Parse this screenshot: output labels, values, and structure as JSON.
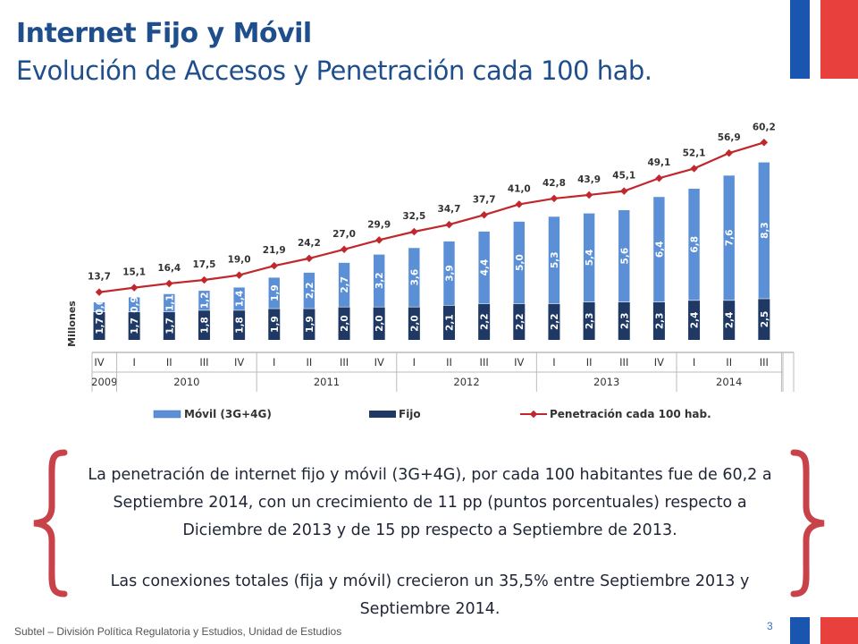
{
  "title": "Internet Fijo y Móvil",
  "subtitle": "Evolución de Accesos y Penetración cada 100 hab.",
  "chart_data": {
    "type": "bar",
    "stacked": true,
    "ylabel": "Millones",
    "categories": [
      "IV",
      "I",
      "II",
      "III",
      "IV",
      "I",
      "II",
      "III",
      "IV",
      "I",
      "II",
      "III",
      "IV",
      "I",
      "II",
      "III",
      "IV",
      "I",
      "II",
      "III"
    ],
    "year_groups": [
      {
        "label": "2009",
        "count": 1
      },
      {
        "label": "2010",
        "count": 4
      },
      {
        "label": "2011",
        "count": 4
      },
      {
        "label": "2012",
        "count": 4
      },
      {
        "label": "2013",
        "count": 4
      },
      {
        "label": "2014",
        "count": 3
      }
    ],
    "series": [
      {
        "name": "Fijo",
        "color": "#1f3864",
        "values": [
          1.7,
          1.7,
          1.7,
          1.8,
          1.8,
          1.9,
          1.9,
          2.0,
          2.0,
          2.0,
          2.1,
          2.2,
          2.2,
          2.2,
          2.3,
          2.3,
          2.3,
          2.4,
          2.4,
          2.5
        ],
        "labels": [
          "1,7",
          "1,7",
          "1,7",
          "1,8",
          "1,8",
          "1,9",
          "1,9",
          "2,0",
          "2,0",
          "2,0",
          "2,1",
          "2,2",
          "2,2",
          "2,2",
          "2,3",
          "2,3",
          "2,3",
          "2,4",
          "2,4",
          "2,5"
        ]
      },
      {
        "name": "Móvil (3G+4G)",
        "color": "#5b8fd6",
        "values": [
          0.6,
          0.9,
          1.1,
          1.2,
          1.4,
          1.9,
          2.2,
          2.7,
          3.2,
          3.6,
          3.9,
          4.4,
          5.0,
          5.3,
          5.4,
          5.6,
          6.4,
          6.8,
          7.6,
          8.3
        ],
        "labels": [
          "0,6",
          "0,9",
          "1,1",
          "1,2",
          "1,4",
          "1,9",
          "2,2",
          "2,7",
          "3,2",
          "3,6",
          "3,9",
          "4,4",
          "5,0",
          "5,3",
          "5,4",
          "5,6",
          "6,4",
          "6,8",
          "7,6",
          "8,3"
        ]
      },
      {
        "name": "Penetración cada 100 hab.",
        "type": "line",
        "color": "#c0282d",
        "values": [
          13.7,
          15.1,
          16.4,
          17.5,
          19.0,
          21.9,
          24.2,
          27.0,
          29.9,
          32.5,
          34.7,
          37.7,
          41.0,
          42.8,
          43.9,
          45.1,
          49.1,
          52.1,
          56.9,
          60.2
        ],
        "labels": [
          "13,7",
          "15,1",
          "16,4",
          "17,5",
          "19,0",
          "21,9",
          "24,2",
          "27,0",
          "29,9",
          "32,5",
          "34,7",
          "37,7",
          "41,0",
          "42,8",
          "43,9",
          "45,1",
          "49,1",
          "52,1",
          "56,9",
          "60,2"
        ]
      }
    ],
    "legend": [
      "Móvil (3G+4G)",
      "Fijo",
      "Penetración cada 100 hab."
    ],
    "legend_position": "bottom"
  },
  "body_text": {
    "paragraph1": "La penetración de internet fijo y móvil (3G+4G), por cada 100 habitantes fue de 60,2 a Septiembre 2014, con un crecimiento de 11 pp (puntos porcentuales) respecto a Diciembre de 2013 y de 15 pp respecto a Septiembre de 2013.",
    "paragraph2": "Las conexiones totales (fija y móvil) crecieron un 35,5% entre Septiembre 2013 y Septiembre 2014."
  },
  "footer": "Subtel – División Política Regulatoria y Estudios, Unidad de Estudios",
  "page_number": "3",
  "colors": {
    "flag_blue": "#1a56b0",
    "flag_red": "#e8403c",
    "brace": "#c8424a",
    "title": "#1f4e8c"
  }
}
